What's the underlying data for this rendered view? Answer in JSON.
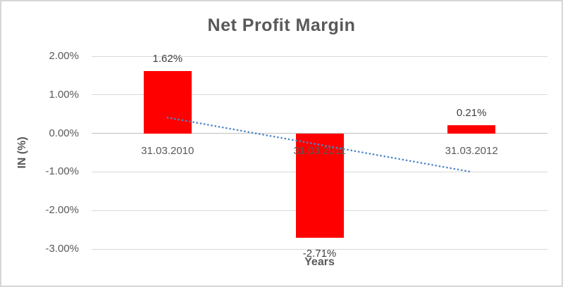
{
  "chart_data": {
    "type": "bar",
    "title": "Net Profit Margin",
    "xlabel": "Years",
    "ylabel": "IN (%)",
    "categories": [
      "31.03.2010",
      "31.03.2011",
      "31.03.2012"
    ],
    "values": [
      1.62,
      -2.71,
      0.21
    ],
    "data_labels": [
      "1.62%",
      "-2.71%",
      "0.21%"
    ],
    "ytick_values": [
      2,
      1,
      0,
      -1,
      -2,
      -3
    ],
    "ytick_labels": [
      "2.00%",
      "1.00%",
      "0.00%",
      "-1.00%",
      "-2.00%",
      "-3.00%"
    ],
    "ylim": [
      -3,
      2
    ],
    "grid": true,
    "legend": "none",
    "bar_color": "#FF0000",
    "trendline": {
      "type": "linear",
      "style": "dotted",
      "color": "#4E86C8",
      "start_value": 0.41,
      "end_value": -1.0
    },
    "colors": {
      "title_text": "#595959",
      "axis_text": "#595959",
      "data_label_text": "#404040",
      "gridline": "#D9D9D9",
      "zero_axis_line": "#BFBFBF",
      "chart_border": "#D6D6D6",
      "background": "#FFFFFF"
    }
  }
}
